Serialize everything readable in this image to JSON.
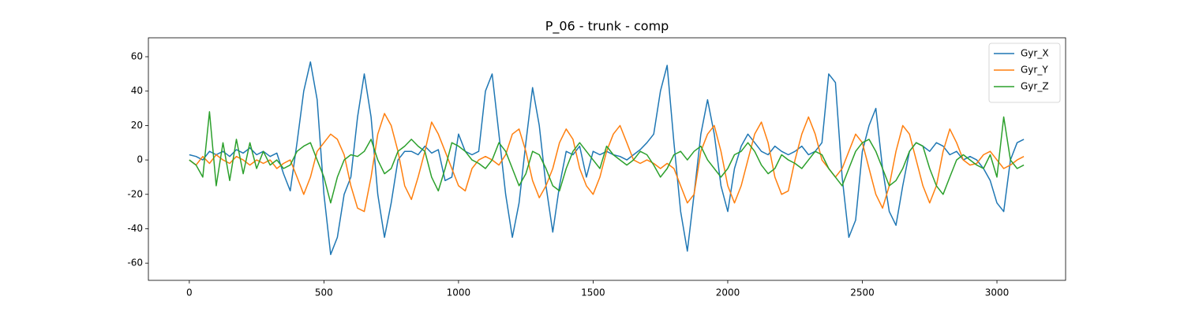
{
  "chart_data": {
    "type": "line",
    "title": "P_06 - trunk - comp",
    "x": [
      0,
      25,
      50,
      75,
      100,
      125,
      150,
      175,
      200,
      225,
      250,
      275,
      300,
      325,
      350,
      375,
      400,
      425,
      450,
      475,
      500,
      525,
      550,
      575,
      600,
      625,
      650,
      675,
      700,
      725,
      750,
      775,
      800,
      825,
      850,
      875,
      900,
      925,
      950,
      975,
      1000,
      1025,
      1050,
      1075,
      1100,
      1125,
      1150,
      1175,
      1200,
      1225,
      1250,
      1275,
      1300,
      1325,
      1350,
      1375,
      1400,
      1425,
      1450,
      1475,
      1500,
      1525,
      1550,
      1575,
      1600,
      1625,
      1650,
      1675,
      1700,
      1725,
      1750,
      1775,
      1800,
      1825,
      1850,
      1875,
      1900,
      1925,
      1950,
      1975,
      2000,
      2025,
      2050,
      2075,
      2100,
      2125,
      2150,
      2175,
      2200,
      2225,
      2250,
      2275,
      2300,
      2325,
      2350,
      2375,
      2400,
      2425,
      2450,
      2475,
      2500,
      2525,
      2550,
      2575,
      2600,
      2625,
      2650,
      2675,
      2700,
      2725,
      2750,
      2775,
      2800,
      2825,
      2850,
      2875,
      2900,
      2925,
      2950,
      2975,
      3000,
      3025,
      3050,
      3075,
      3100
    ],
    "series": [
      {
        "name": "Gyr_X",
        "color": "#1f77b4",
        "values": [
          3,
          2,
          0,
          5,
          3,
          5,
          2,
          6,
          4,
          7,
          3,
          5,
          2,
          4,
          -8,
          -18,
          10,
          40,
          57,
          35,
          -20,
          -55,
          -45,
          -20,
          -10,
          25,
          50,
          25,
          -20,
          -45,
          -25,
          0,
          5,
          5,
          3,
          8,
          4,
          6,
          -12,
          -10,
          15,
          5,
          3,
          5,
          40,
          50,
          15,
          -20,
          -45,
          -25,
          10,
          42,
          20,
          -15,
          -42,
          -15,
          5,
          3,
          8,
          -10,
          5,
          3,
          5,
          3,
          2,
          0,
          3,
          6,
          10,
          15,
          40,
          55,
          10,
          -30,
          -53,
          -20,
          15,
          35,
          15,
          -15,
          -30,
          -5,
          8,
          15,
          10,
          5,
          3,
          8,
          5,
          3,
          5,
          8,
          3,
          5,
          10,
          50,
          45,
          -10,
          -45,
          -35,
          5,
          20,
          30,
          -5,
          -30,
          -38,
          -15,
          5,
          10,
          8,
          5,
          10,
          8,
          3,
          5,
          0,
          2,
          0,
          -5,
          -12,
          -25,
          -30,
          0,
          10,
          12
        ]
      },
      {
        "name": "Gyr_Y",
        "color": "#ff7f0e",
        "values": [
          0,
          -3,
          2,
          -2,
          3,
          0,
          -2,
          2,
          0,
          -3,
          0,
          -2,
          0,
          -5,
          -2,
          0,
          -10,
          -20,
          -10,
          5,
          10,
          15,
          12,
          3,
          -15,
          -28,
          -30,
          -10,
          15,
          27,
          20,
          5,
          -15,
          -23,
          -10,
          5,
          22,
          15,
          5,
          -5,
          -15,
          -18,
          -5,
          0,
          2,
          0,
          -3,
          3,
          15,
          18,
          5,
          -12,
          -22,
          -15,
          -5,
          10,
          18,
          12,
          -5,
          -15,
          -20,
          -10,
          5,
          15,
          20,
          10,
          0,
          -2,
          0,
          -2,
          -5,
          -2,
          -5,
          -15,
          -25,
          -20,
          5,
          15,
          20,
          5,
          -15,
          -25,
          -15,
          0,
          15,
          22,
          10,
          -10,
          -20,
          -18,
          0,
          15,
          25,
          15,
          0,
          -5,
          -10,
          -5,
          5,
          15,
          10,
          -5,
          -20,
          -28,
          -15,
          5,
          20,
          15,
          0,
          -15,
          -25,
          -15,
          5,
          18,
          10,
          0,
          -3,
          -2,
          3,
          5,
          0,
          -5,
          -3,
          0,
          2
        ]
      },
      {
        "name": "Gyr_Z",
        "color": "#2ca02c",
        "values": [
          0,
          -3,
          -10,
          28,
          -15,
          10,
          -12,
          12,
          -8,
          10,
          -5,
          5,
          -3,
          0,
          -5,
          -3,
          5,
          8,
          10,
          0,
          -10,
          -25,
          -10,
          0,
          3,
          2,
          5,
          12,
          0,
          -8,
          -5,
          5,
          8,
          12,
          8,
          5,
          -10,
          -18,
          -5,
          10,
          8,
          5,
          0,
          -2,
          -5,
          0,
          10,
          5,
          -5,
          -15,
          -8,
          5,
          3,
          -5,
          -15,
          -18,
          -5,
          5,
          10,
          5,
          0,
          -5,
          8,
          3,
          0,
          -3,
          0,
          5,
          3,
          -3,
          -10,
          -5,
          3,
          5,
          0,
          5,
          8,
          0,
          -5,
          -10,
          -5,
          3,
          5,
          10,
          5,
          -3,
          -8,
          -5,
          3,
          0,
          -2,
          -5,
          0,
          5,
          3,
          -5,
          -10,
          -15,
          -5,
          5,
          10,
          12,
          5,
          -5,
          -15,
          -12,
          -5,
          5,
          10,
          8,
          -5,
          -15,
          -20,
          -10,
          0,
          3,
          0,
          -3,
          -5,
          3,
          -10,
          25,
          0,
          -5,
          -3
        ]
      }
    ],
    "xlim": [
      -152,
      3255
    ],
    "ylim": [
      -70,
      71
    ],
    "xticks": [
      0,
      500,
      1000,
      1500,
      2000,
      2500,
      3000
    ],
    "yticks": [
      -60,
      -40,
      -20,
      0,
      20,
      40,
      60
    ],
    "legend": "upper right"
  }
}
